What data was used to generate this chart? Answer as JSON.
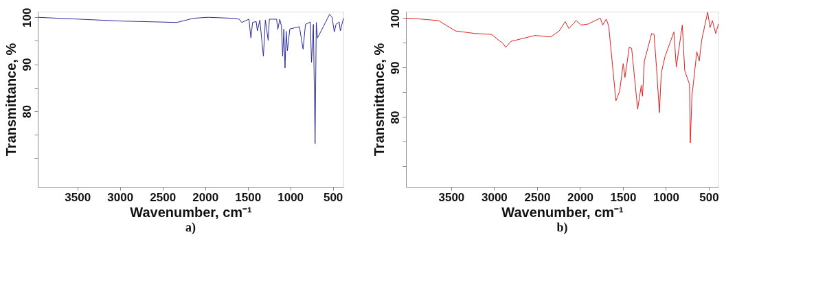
{
  "chart_data": [
    {
      "type": "line",
      "xlabel": "Wavenumber, cm⁻¹",
      "ylabel": "Transmittance, %",
      "annotations": [
        "a)"
      ],
      "xlim": [
        3966,
        376
      ],
      "ylim": [
        63.9,
        101.2
      ],
      "xticks": [
        3500,
        3000,
        2500,
        2000,
        1500,
        1000,
        500
      ],
      "yticks": [
        100,
        {
          "value": 95,
          "label": null
        },
        90,
        {
          "value": 85,
          "label": null
        },
        80,
        {
          "value": 75,
          "label": null
        },
        {
          "value": 70,
          "label": null
        }
      ],
      "grid": false,
      "marker": "none",
      "line_style": "solid",
      "series": [
        {
          "color": "#2a2a9e",
          "x": [
            3966,
            2983,
            2531,
            2333,
            2136,
            1966,
            1684,
            1599,
            1571,
            1486,
            1463,
            1443,
            1401,
            1387,
            1358,
            1316,
            1293,
            1260,
            1246,
            1161,
            1147,
            1124,
            1104,
            1090,
            1076,
            1062,
            1048,
            1034,
            1006,
            893,
            850,
            822,
            765,
            751,
            729,
            709,
            695,
            681,
            610,
            540,
            511,
            483,
            463,
            426,
            412,
            376
          ],
          "values": [
            100,
            99.2,
            99.0,
            98.9,
            99.8,
            100,
            99.8,
            99.6,
            98.9,
            99.6,
            95.6,
            98.9,
            99.1,
            97.1,
            99.4,
            91.7,
            99.4,
            95.1,
            99.6,
            99.6,
            97.4,
            99.6,
            98.1,
            91.7,
            97.5,
            89.2,
            97.0,
            92.9,
            97.5,
            98.0,
            93.2,
            98.5,
            99.0,
            90.4,
            98.5,
            73.1,
            98.9,
            95.6,
            98.1,
            100.6,
            100.1,
            96.9,
            98.5,
            99.0,
            97.1,
            99.8
          ]
        }
      ]
    },
    {
      "type": "line",
      "xlabel": "Wavenumber, cm⁻¹",
      "ylabel": "Transmittance, %",
      "annotations": [
        "b)"
      ],
      "xlim": [
        4027,
        388
      ],
      "ylim": [
        65.9,
        101.3
      ],
      "xticks": [
        3500,
        3000,
        2500,
        2000,
        1500,
        1000,
        500
      ],
      "yticks": [
        100,
        {
          "value": 95,
          "label": null
        },
        90,
        {
          "value": 85,
          "label": null
        },
        80,
        {
          "value": 75,
          "label": null
        },
        {
          "value": 70,
          "label": null
        }
      ],
      "grid": false,
      "marker": "none",
      "line_style": "solid",
      "series": [
        {
          "color": "#e02020",
          "x": [
            4027,
            3928,
            3647,
            3450,
            3225,
            3029,
            2945,
            2903,
            2866,
            2804,
            2523,
            2341,
            2242,
            2172,
            2130,
            2045,
            1989,
            1905,
            1764,
            1736,
            1694,
            1666,
            1582,
            1539,
            1497,
            1477,
            1427,
            1399,
            1329,
            1287,
            1273,
            1251,
            1166,
            1138,
            1110,
            1076,
            1054,
            1011,
            907,
            879,
            809,
            781,
            725,
            716,
            697,
            640,
            612,
            584,
            514,
            486,
            458,
            421,
            388
          ],
          "values": [
            100,
            99.9,
            99.5,
            97.4,
            96.9,
            96.7,
            95.5,
            95.0,
            94.1,
            95.3,
            96.5,
            96.2,
            97.4,
            99.3,
            97.9,
            99.5,
            98.6,
            98.8,
            100,
            98.6,
            99.8,
            98.4,
            83.3,
            85.2,
            90.8,
            88.0,
            94.1,
            93.9,
            81.6,
            86.4,
            84.2,
            91.3,
            96.9,
            96.7,
            90.1,
            80.9,
            88.9,
            92.2,
            97.2,
            90.1,
            98.6,
            89.4,
            86.6,
            74.8,
            84.2,
            93.2,
            91.3,
            95.5,
            101.2,
            98.1,
            99.5,
            96.9,
            98.8
          ]
        }
      ]
    }
  ]
}
